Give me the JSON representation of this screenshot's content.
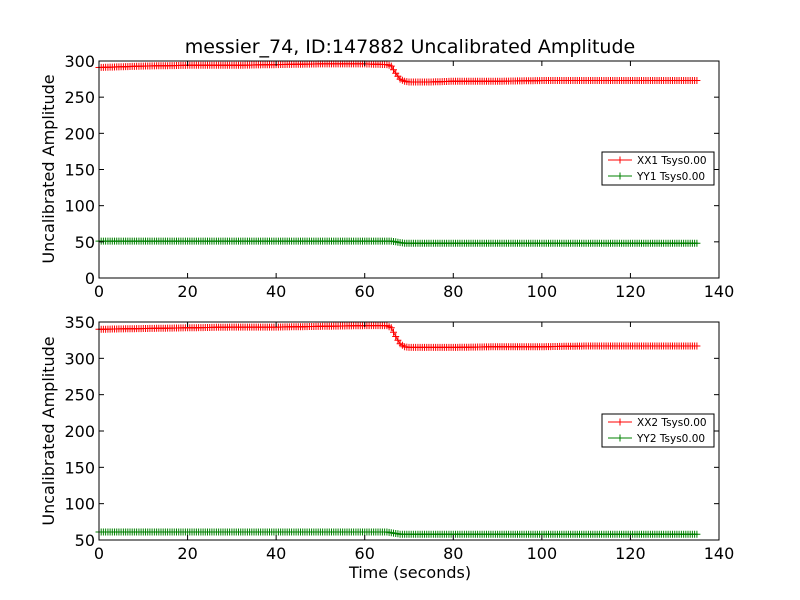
{
  "colors": {
    "xx": "#ff0000",
    "yy": "#008000"
  },
  "chart_data": [
    {
      "type": "line",
      "title": "messier_74, ID:147882 Uncalibrated Amplitude",
      "xlabel": "",
      "ylabel": "Uncalibrated Amplitude",
      "xlim": [
        0,
        140
      ],
      "ylim": [
        0,
        300
      ],
      "xticks": [
        "0",
        "20",
        "40",
        "60",
        "80",
        "100",
        "120",
        "140"
      ],
      "yticks": [
        "0",
        "50",
        "100",
        "150",
        "200",
        "250",
        "300"
      ],
      "legend_position": "right",
      "marker": "plus",
      "series": [
        {
          "name": "XX1 Tsys0.00",
          "color": "#ff0000",
          "x": [
            0,
            10,
            20,
            30,
            40,
            50,
            60,
            65,
            66,
            67,
            68,
            69,
            70,
            75,
            80,
            90,
            100,
            110,
            120,
            130,
            135
          ],
          "y": [
            291,
            293,
            294,
            294,
            295,
            296,
            296,
            295,
            293,
            283,
            275,
            272,
            271,
            271,
            272,
            272,
            273,
            273,
            273,
            273,
            273
          ]
        },
        {
          "name": "YY1 Tsys0.00",
          "color": "#008000",
          "x": [
            0,
            10,
            20,
            30,
            40,
            50,
            60,
            65,
            66,
            67,
            68,
            69,
            70,
            80,
            90,
            100,
            110,
            120,
            130,
            135
          ],
          "y": [
            51,
            51,
            51,
            51,
            51,
            51,
            51,
            51,
            51,
            50,
            49,
            48,
            48,
            48,
            48,
            48,
            48,
            48,
            48,
            48
          ]
        }
      ]
    },
    {
      "type": "line",
      "title": "",
      "xlabel": "Time (seconds)",
      "ylabel": "Uncalibrated Amplitude",
      "xlim": [
        0,
        140
      ],
      "ylim": [
        50,
        350
      ],
      "xticks": [
        "0",
        "20",
        "40",
        "60",
        "80",
        "100",
        "120",
        "140"
      ],
      "yticks": [
        "50",
        "100",
        "150",
        "200",
        "250",
        "300",
        "350"
      ],
      "legend_position": "right",
      "marker": "plus",
      "series": [
        {
          "name": "XX2 Tsys0.00",
          "color": "#ff0000",
          "x": [
            0,
            10,
            20,
            30,
            40,
            50,
            60,
            65,
            66,
            67,
            68,
            69,
            70,
            75,
            80,
            90,
            100,
            110,
            120,
            130,
            135
          ],
          "y": [
            340,
            341,
            342,
            343,
            343,
            344,
            345,
            345,
            342,
            330,
            320,
            316,
            315,
            315,
            315,
            316,
            316,
            317,
            317,
            317,
            317
          ]
        },
        {
          "name": "YY2 Tsys0.00",
          "color": "#008000",
          "x": [
            0,
            10,
            20,
            30,
            40,
            50,
            60,
            65,
            66,
            67,
            68,
            69,
            70,
            80,
            90,
            100,
            110,
            120,
            130,
            135
          ],
          "y": [
            61,
            61,
            61,
            61,
            61,
            61,
            61,
            61,
            60,
            59,
            58,
            58,
            58,
            58,
            58,
            58,
            58,
            58,
            58,
            58
          ]
        }
      ]
    }
  ]
}
